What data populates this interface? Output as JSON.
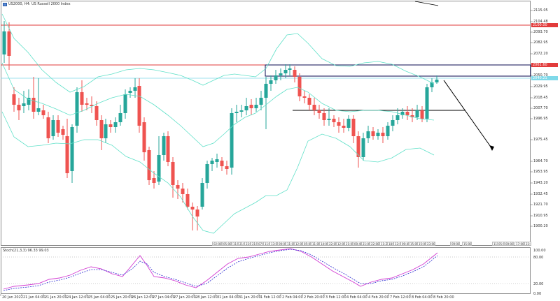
{
  "window": {
    "title": "US2000, H4: US Russell 2000 Index"
  },
  "price_axis": {
    "labels": [
      "2115.05",
      "2104.48",
      "2093.70",
      "2082.95",
      "2072.20",
      "2061.40",
      "2050.70",
      "2029.95",
      "2018.45",
      "2007.70",
      "1996.95",
      "1975.45",
      "1964.70",
      "1953.95",
      "1943.20",
      "1932.45",
      "1921.70",
      "1910.95",
      "1900.20"
    ],
    "tags": [
      {
        "text": "2100.00",
        "color": "#e23b3b"
      },
      {
        "text": "2061.60",
        "color": "#e23b3b"
      },
      {
        "text": "2040.21",
        "color": "#7fd9e9"
      }
    ]
  },
  "stochastic": {
    "title": "Stoch(21,3,3) 96.33 99.03",
    "levels": [
      "100.00",
      "80.00",
      "20.00",
      "0.00"
    ]
  },
  "time_axis": {
    "labels": [
      "20 Jan 2022",
      "21 Jan 04:00",
      "21 Jan 20:00",
      "24 Jan 12:00",
      "25 Jan 04:00",
      "25 Jan 20:00",
      "26 Jan 12:00",
      "27 Jan 04:00",
      "27 Jan 20:00",
      "28 Jan 12:00",
      "31 Jan 04:00",
      "31 Jan 20:00",
      "1 Feb 12:00",
      "2 Feb 04:00",
      "2 Feb 20:00",
      "3 Feb 12:00",
      "4 Feb 04:00",
      "4 Feb 20:00",
      "7 Feb 12:00",
      "8 Feb 04:00",
      "8 Feb 20:00"
    ]
  },
  "ticks_row": [
    "02:00",
    "05:00",
    "11:00",
    "21:20",
    "22:00",
    "21:20",
    "07:00",
    "11:20",
    "13:00",
    "09:00",
    "11:00",
    "12:00",
    "05:00",
    "11:00",
    "14:00",
    "22:00",
    "12:00",
    "21:00",
    "09:45",
    "21:00",
    "22:00",
    "11:20",
    "18:00",
    "12:00",
    "09:45",
    "15:00",
    "15:00",
    "23:00",
    "09:00",
    "15:00",
    "11:00",
    "05:00",
    "09:00",
    "17:00",
    "22:00"
  ],
  "colors": {
    "bull": "#26a69a",
    "bear": "#ef5350",
    "bands": "#5fe0c8",
    "resistance": "#e23b3b",
    "level_cyan": "#7fd9e9",
    "stoch_main": "#d23ad2",
    "stoch_signal": "#2a2ad0"
  }
}
